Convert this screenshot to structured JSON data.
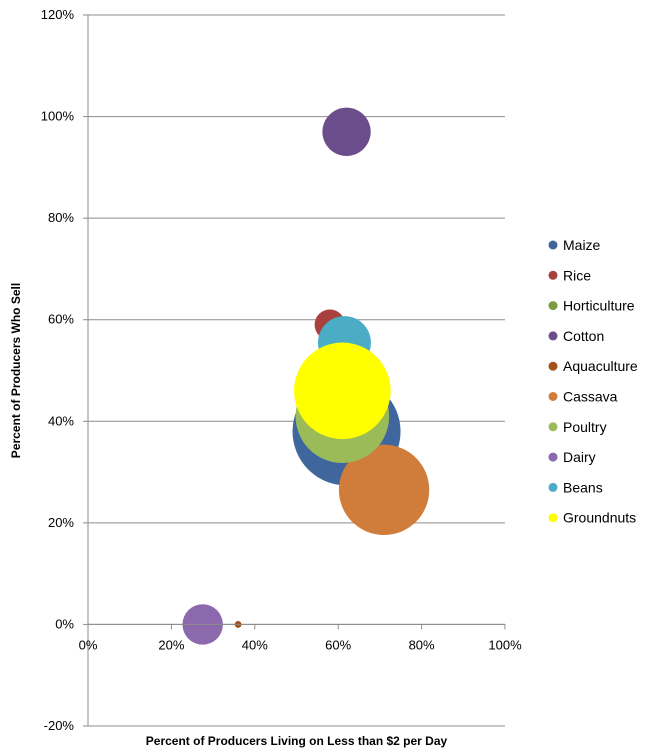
{
  "chart_data": {
    "type": "bubble",
    "xlabel": "Percent of Producers Living on Less than $2 per Day",
    "ylabel": "Percent of Producers Who Sell",
    "xlim": [
      0,
      100
    ],
    "ylim": [
      -20,
      120
    ],
    "x_ticks": [
      "0%",
      "20%",
      "40%",
      "60%",
      "80%",
      "100%"
    ],
    "y_ticks": [
      "-20%",
      "0%",
      "20%",
      "40%",
      "60%",
      "80%",
      "100%",
      "120%"
    ],
    "grid": "horizontal",
    "legend_position": "right",
    "series": [
      {
        "name": "Maize",
        "color": "#3F679E",
        "x": 62,
        "y": 38,
        "size": 100
      },
      {
        "name": "Rice",
        "color": "#A8413E",
        "x": 58,
        "y": 59,
        "size": 8
      },
      {
        "name": "Horticulture",
        "color": "#7E9A41",
        "x": 61,
        "y": 47,
        "size": 36
      },
      {
        "name": "Cotton",
        "color": "#6A4D8A",
        "x": 62,
        "y": 97,
        "size": 20
      },
      {
        "name": "Aquaculture",
        "color": "#A0521A",
        "x": 36,
        "y": 0,
        "size": 0.4
      },
      {
        "name": "Cassava",
        "color": "#D07C3A",
        "x": 71,
        "y": 26.5,
        "size": 70
      },
      {
        "name": "Poultry",
        "color": "#9BBB59",
        "x": 61,
        "y": 41,
        "size": 75
      },
      {
        "name": "Dairy",
        "color": "#8C68AC",
        "x": 27.5,
        "y": 0,
        "size": 14
      },
      {
        "name": "Beans",
        "color": "#4BACC6",
        "x": 61.5,
        "y": 55.5,
        "size": 24
      },
      {
        "name": "Groundnuts",
        "color": "#FFFF00",
        "x": 61,
        "y": 46,
        "size": 80
      }
    ]
  }
}
